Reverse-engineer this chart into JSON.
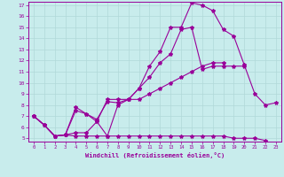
{
  "xlabel": "Windchill (Refroidissement éolien,°C)",
  "background_color": "#c8ecec",
  "grid_color": "#b0d8d8",
  "line_color": "#990099",
  "xlim": [
    -0.5,
    23.5
  ],
  "ylim": [
    4.7,
    17.3
  ],
  "xticks": [
    0,
    1,
    2,
    3,
    4,
    5,
    6,
    7,
    8,
    9,
    10,
    11,
    12,
    13,
    14,
    15,
    16,
    17,
    18,
    19,
    20,
    21,
    22,
    23
  ],
  "yticks": [
    5,
    6,
    7,
    8,
    9,
    10,
    11,
    12,
    13,
    14,
    15,
    16,
    17
  ],
  "series": [
    {
      "x": [
        0,
        1,
        2,
        3,
        4,
        5,
        6,
        7,
        8,
        9,
        10,
        11,
        12,
        13,
        14,
        15,
        16,
        17,
        18,
        19,
        20,
        21,
        22,
        23
      ],
      "y": [
        7.0,
        6.2,
        5.2,
        5.3,
        7.5,
        7.2,
        6.7,
        8.3,
        8.2,
        8.5,
        9.5,
        11.5,
        12.8,
        15.0,
        15.0,
        17.2,
        17.0,
        16.5,
        14.8,
        14.2,
        11.6,
        9.0,
        8.0,
        8.2
      ]
    },
    {
      "x": [
        0,
        1,
        2,
        3,
        4,
        5,
        6,
        7,
        8,
        9,
        10,
        11,
        12,
        13,
        14,
        15,
        16,
        17,
        18,
        19,
        20
      ],
      "y": [
        7.0,
        6.2,
        5.2,
        5.3,
        7.8,
        7.2,
        6.5,
        5.2,
        8.0,
        8.5,
        9.5,
        10.5,
        11.8,
        12.6,
        14.8,
        15.0,
        11.2,
        11.5,
        11.5,
        11.5,
        11.5
      ]
    },
    {
      "x": [
        0,
        1,
        2,
        3,
        4,
        5,
        6,
        7,
        8,
        9,
        10,
        11,
        12,
        13,
        14,
        15,
        16,
        17,
        18,
        19,
        20,
        21,
        22
      ],
      "y": [
        7.0,
        6.2,
        5.2,
        5.3,
        5.2,
        5.2,
        5.2,
        5.2,
        5.2,
        5.2,
        5.2,
        5.2,
        5.2,
        5.2,
        5.2,
        5.2,
        5.2,
        5.2,
        5.2,
        5.0,
        5.0,
        5.0,
        4.8
      ]
    },
    {
      "x": [
        0,
        1,
        2,
        3,
        4,
        5,
        6,
        7,
        8,
        9,
        10,
        11,
        12,
        13,
        14,
        15,
        16,
        17,
        18
      ],
      "y": [
        7.0,
        6.2,
        5.2,
        5.3,
        5.5,
        5.5,
        6.5,
        8.5,
        8.5,
        8.5,
        8.5,
        9.0,
        9.5,
        10.0,
        10.5,
        11.0,
        11.5,
        11.8,
        11.8
      ]
    }
  ],
  "marker": "*",
  "markersize": 3,
  "linewidth": 0.8
}
